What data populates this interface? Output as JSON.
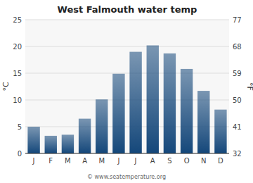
{
  "chart_data": {
    "type": "bar",
    "title": "West Falmouth water temp",
    "categories": [
      "J",
      "F",
      "M",
      "A",
      "M",
      "J",
      "J",
      "A",
      "S",
      "O",
      "N",
      "D"
    ],
    "values": [
      5.0,
      3.3,
      3.5,
      6.5,
      10.1,
      14.9,
      19.0,
      20.2,
      18.7,
      15.8,
      11.7,
      8.2
    ],
    "color": "#14477a",
    "ylabel": "°C",
    "y2label": "°F",
    "ylim": [
      0,
      25
    ],
    "yticks": [
      0,
      5,
      10,
      15,
      20,
      25
    ],
    "y2lim": [
      32,
      77
    ],
    "y2ticks": [
      32,
      41,
      50,
      59,
      68,
      77
    ],
    "grid": true,
    "annotations": [
      "© www.seatemperature.org"
    ]
  }
}
